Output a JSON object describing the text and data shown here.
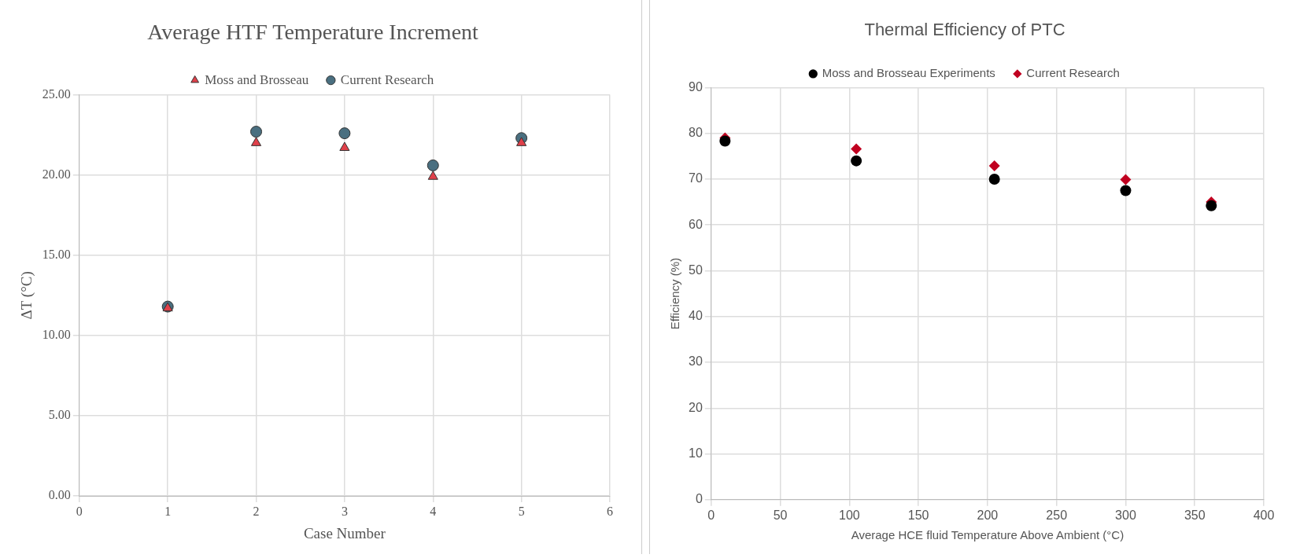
{
  "chart_data": [
    {
      "type": "scatter",
      "title": "Average HTF Temperature Increment",
      "xlabel": "Case Number",
      "ylabel": "ΔT (°C)",
      "legend": "top",
      "grid": true,
      "xlim": [
        0,
        6
      ],
      "xticks": [
        0,
        1,
        2,
        3,
        4,
        5,
        6
      ],
      "ylim": [
        0,
        25
      ],
      "yticks": [
        {
          "value": 0,
          "label": "0.00"
        },
        {
          "value": 5,
          "label": "5.00"
        },
        {
          "value": 10,
          "label": "10.00"
        },
        {
          "value": 15,
          "label": "15.00"
        },
        {
          "value": 20,
          "label": "20.00"
        },
        {
          "value": 25,
          "label": "25.00"
        }
      ],
      "x": [
        1,
        2,
        3,
        4,
        5
      ],
      "series": [
        {
          "name": "Current Research",
          "color": "#4a6f80",
          "marker": "circle",
          "values": [
            11.8,
            22.7,
            22.6,
            20.6,
            22.3
          ]
        },
        {
          "name": "Moss and Brosseau",
          "color": "#e0404a",
          "marker": "triangle",
          "values": [
            11.7,
            22.0,
            21.7,
            19.9,
            22.0
          ]
        }
      ]
    },
    {
      "type": "scatter",
      "title": "Thermal Efficiency of PTC",
      "xlabel": "Average HCE fluid Temperature Above Ambient (°C)",
      "ylabel": "Efficiency (%)",
      "legend": "top",
      "grid": true,
      "xlim": [
        0,
        400
      ],
      "xticks": [
        0,
        50,
        100,
        150,
        200,
        250,
        300,
        350,
        400
      ],
      "ylim": [
        0,
        90
      ],
      "yticks": [
        0,
        10,
        20,
        30,
        40,
        50,
        60,
        70,
        80,
        90
      ],
      "x": [
        10,
        105,
        205,
        300,
        362
      ],
      "series": [
        {
          "name": "Current Research",
          "color": "#c00020",
          "marker": "diamond",
          "values": [
            79,
            76.6,
            72.9,
            69.9,
            65
          ]
        },
        {
          "name": "Moss and Brosseau Experiments",
          "color": "#000000",
          "marker": "circle",
          "values": [
            78.3,
            74,
            70,
            67.5,
            64.2
          ]
        }
      ]
    }
  ]
}
